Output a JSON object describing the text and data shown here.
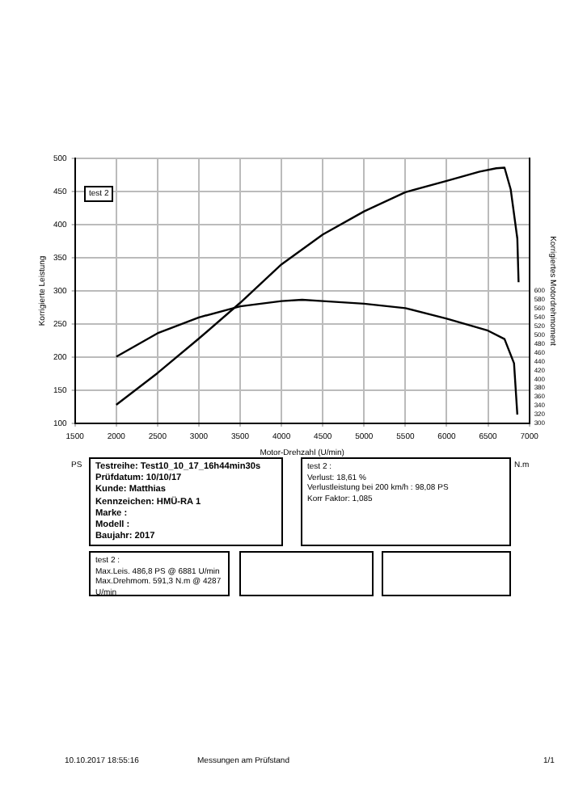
{
  "chart_data": {
    "type": "line",
    "xlabel": "Motor-Drehzahl (U/min)",
    "ylabel": "Korrigierte Leistung",
    "y2label": "Korrigiertes Motordrehmoment",
    "xlim": [
      1500,
      7000
    ],
    "xticks": [
      1500,
      2000,
      2500,
      3000,
      3500,
      4000,
      4500,
      5000,
      5500,
      6000,
      6500,
      7000
    ],
    "ylim": [
      100,
      500
    ],
    "yticks": [
      100,
      150,
      200,
      250,
      300,
      350,
      400,
      450,
      500
    ],
    "y2lim": [
      300,
      900
    ],
    "y2ticks": [
      300,
      320,
      340,
      360,
      380,
      400,
      420,
      440,
      460,
      480,
      500,
      520,
      540,
      560,
      580,
      600
    ],
    "grid": true,
    "legend": false,
    "marker": "none",
    "line_style": "solid",
    "series": [
      {
        "color": "#000000",
        "x": [
          2000,
          2500,
          3000,
          3500,
          4000,
          4500,
          5000,
          5500,
          6000,
          6400,
          6600,
          6700,
          6775,
          6855,
          6870
        ],
        "values": [
          128,
          176,
          228,
          282,
          340,
          385,
          420,
          449,
          466,
          480,
          485,
          486,
          453,
          379,
          313
        ]
      },
      {
        "color": "#000000",
        "axis": "y2",
        "x": [
          2000,
          2500,
          3000,
          3500,
          4000,
          4250,
          4500,
          5000,
          5500,
          6000,
          6500,
          6700,
          6815,
          6855
        ],
        "values": [
          451,
          504,
          540,
          565,
          577,
          580,
          577,
          571,
          561,
          537,
          510,
          491,
          436,
          320
        ]
      }
    ],
    "annotations": [
      "test 2",
      "PS",
      "N.m",
      "Testreihe: Test10_10_17_16h44min30s",
      "Prüfdatum: 10/10/17",
      "Kunde: Matthias",
      "Kennzeichen: HMÜ-RA 1",
      "Marke :",
      "Modell :",
      "Baujahr: 2017",
      "test 2 :",
      "Verlust: 18,61 %",
      "Verlustleistung bei 200 km/h : 98,08 PS",
      "Korr Faktor: 1,085",
      "test 2 :",
      "Max.Leis. 486,8 PS @ 6881 U/min",
      "Max.Drehmom. 591,3 N.m @ 4287 U/min",
      "10.10.2017 18:55:16",
      "Messungen am Prüfstand",
      "1/1"
    ]
  }
}
